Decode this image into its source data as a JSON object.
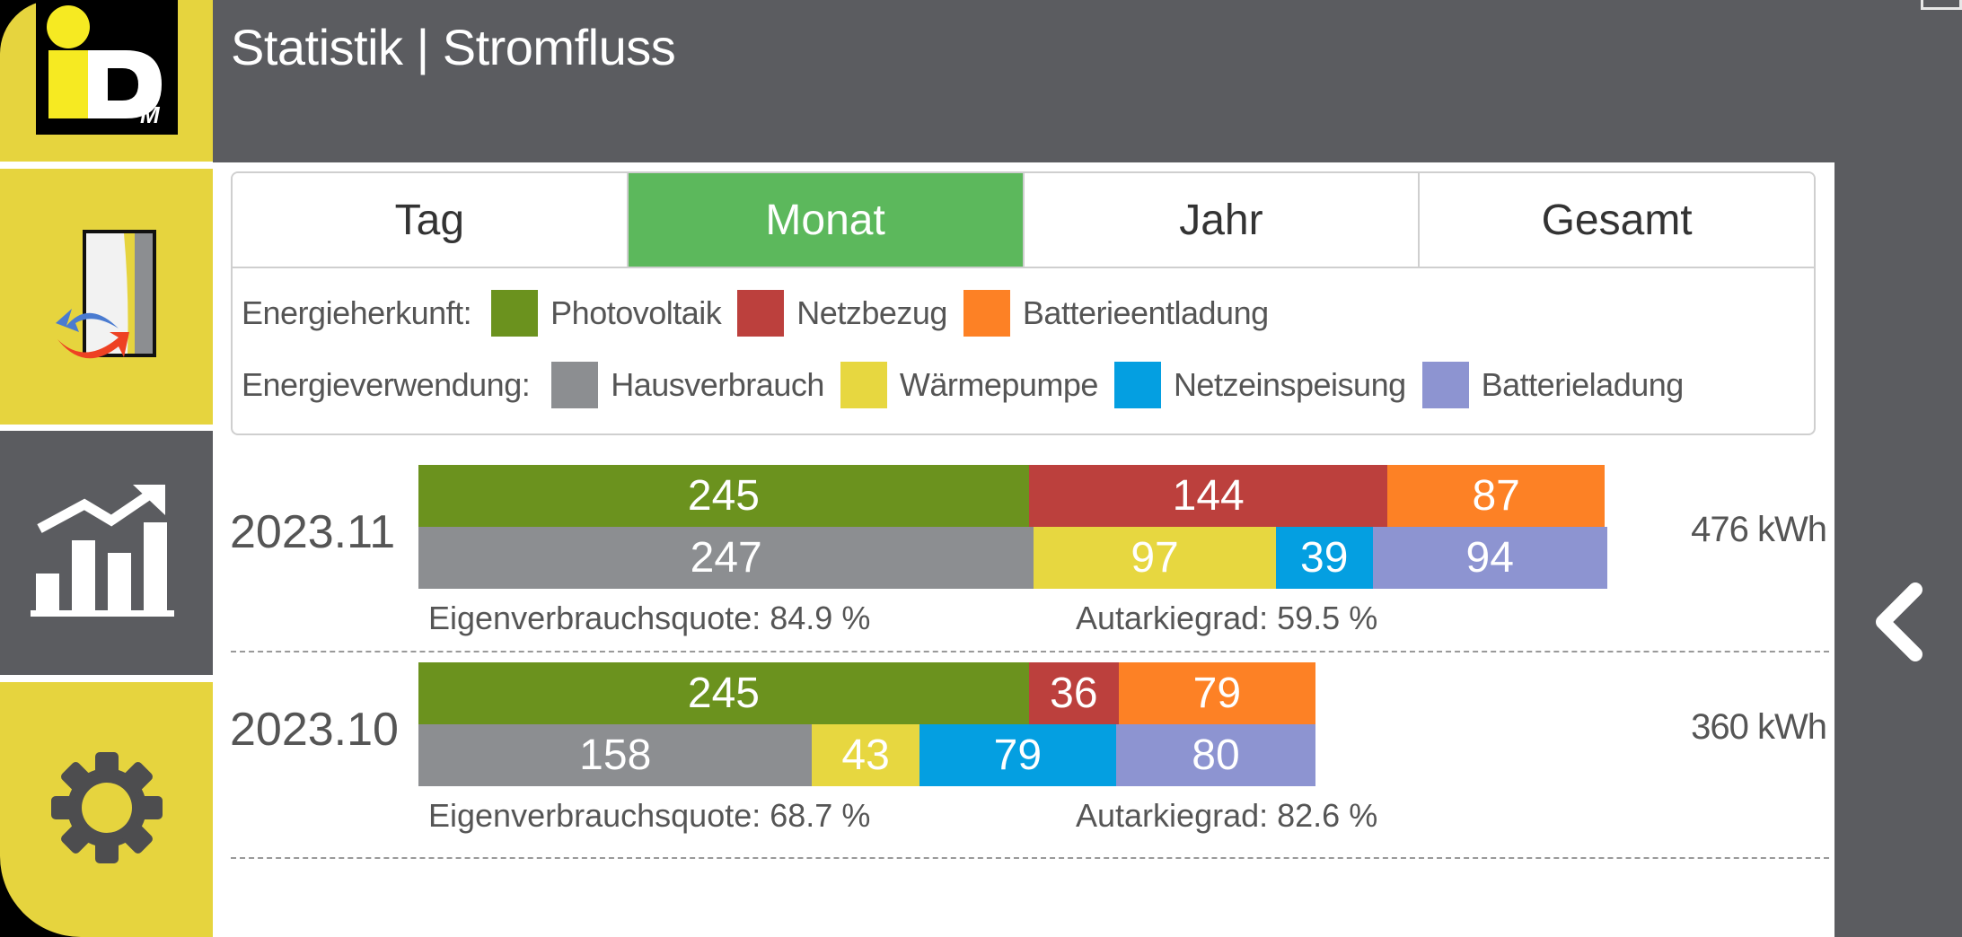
{
  "header": {
    "title": "Statistik | Stromfluss"
  },
  "sidebar": {
    "items": [
      {
        "name": "logo",
        "label": "iDM"
      },
      {
        "name": "service",
        "icon": "heatpump-exchange-icon"
      },
      {
        "name": "statistics",
        "icon": "chart-growth-icon",
        "active": true
      },
      {
        "name": "settings",
        "icon": "gear-icon"
      }
    ]
  },
  "tabs": [
    {
      "label": "Tag",
      "active": false
    },
    {
      "label": "Monat",
      "active": true
    },
    {
      "label": "Jahr",
      "active": false
    },
    {
      "label": "Gesamt",
      "active": false
    }
  ],
  "legend": {
    "origin_label": "Energieherkunft:",
    "origin": [
      {
        "label": "Photovoltaik",
        "color": "#6b921e"
      },
      {
        "label": "Netzbezug",
        "color": "#bc403d"
      },
      {
        "label": "Batterieentladung",
        "color": "#fd8125"
      }
    ],
    "usage_label": "Energieverwendung:",
    "usage": [
      {
        "label": "Hausverbrauch",
        "color": "#8c8e91"
      },
      {
        "label": "Wärmepumpe",
        "color": "#e7d740"
      },
      {
        "label": "Netzeinspeisung",
        "color": "#049fe1"
      },
      {
        "label": "Batterieladung",
        "color": "#8d94d1"
      }
    ]
  },
  "rows": [
    {
      "month": "2023.11",
      "total": "476 kWh",
      "origin": [
        245,
        144,
        87
      ],
      "usage": [
        247,
        97,
        39,
        94
      ],
      "quote": "Eigenverbrauchsquote: 84.9 %",
      "autark": "Autarkiegrad: 59.5 %"
    },
    {
      "month": "2023.10",
      "total": "360 kWh",
      "origin": [
        245,
        36,
        79
      ],
      "usage": [
        158,
        43,
        79,
        80
      ],
      "quote": "Eigenverbrauchsquote: 68.7 %",
      "autark": "Autarkiegrad: 82.6 %"
    }
  ],
  "chart_data": {
    "type": "bar",
    "orientation": "horizontal-stacked",
    "unit": "kWh",
    "categories": [
      "2023.11",
      "2023.10"
    ],
    "groups": [
      {
        "name": "Energieherkunft",
        "series": [
          {
            "name": "Photovoltaik",
            "color": "#6b921e",
            "values": [
              245,
              245
            ]
          },
          {
            "name": "Netzbezug",
            "color": "#bc403d",
            "values": [
              144,
              36
            ]
          },
          {
            "name": "Batterieentladung",
            "color": "#fd8125",
            "values": [
              87,
              79
            ]
          }
        ]
      },
      {
        "name": "Energieverwendung",
        "series": [
          {
            "name": "Hausverbrauch",
            "color": "#8c8e91",
            "values": [
              247,
              158
            ]
          },
          {
            "name": "Wärmepumpe",
            "color": "#e7d740",
            "values": [
              97,
              43
            ]
          },
          {
            "name": "Netzeinspeisung",
            "color": "#049fe1",
            "values": [
              39,
              79
            ]
          },
          {
            "name": "Batterieladung",
            "color": "#8d94d1",
            "values": [
              94,
              80
            ]
          }
        ]
      }
    ],
    "totals": [
      476,
      360
    ],
    "max_value": 476
  }
}
